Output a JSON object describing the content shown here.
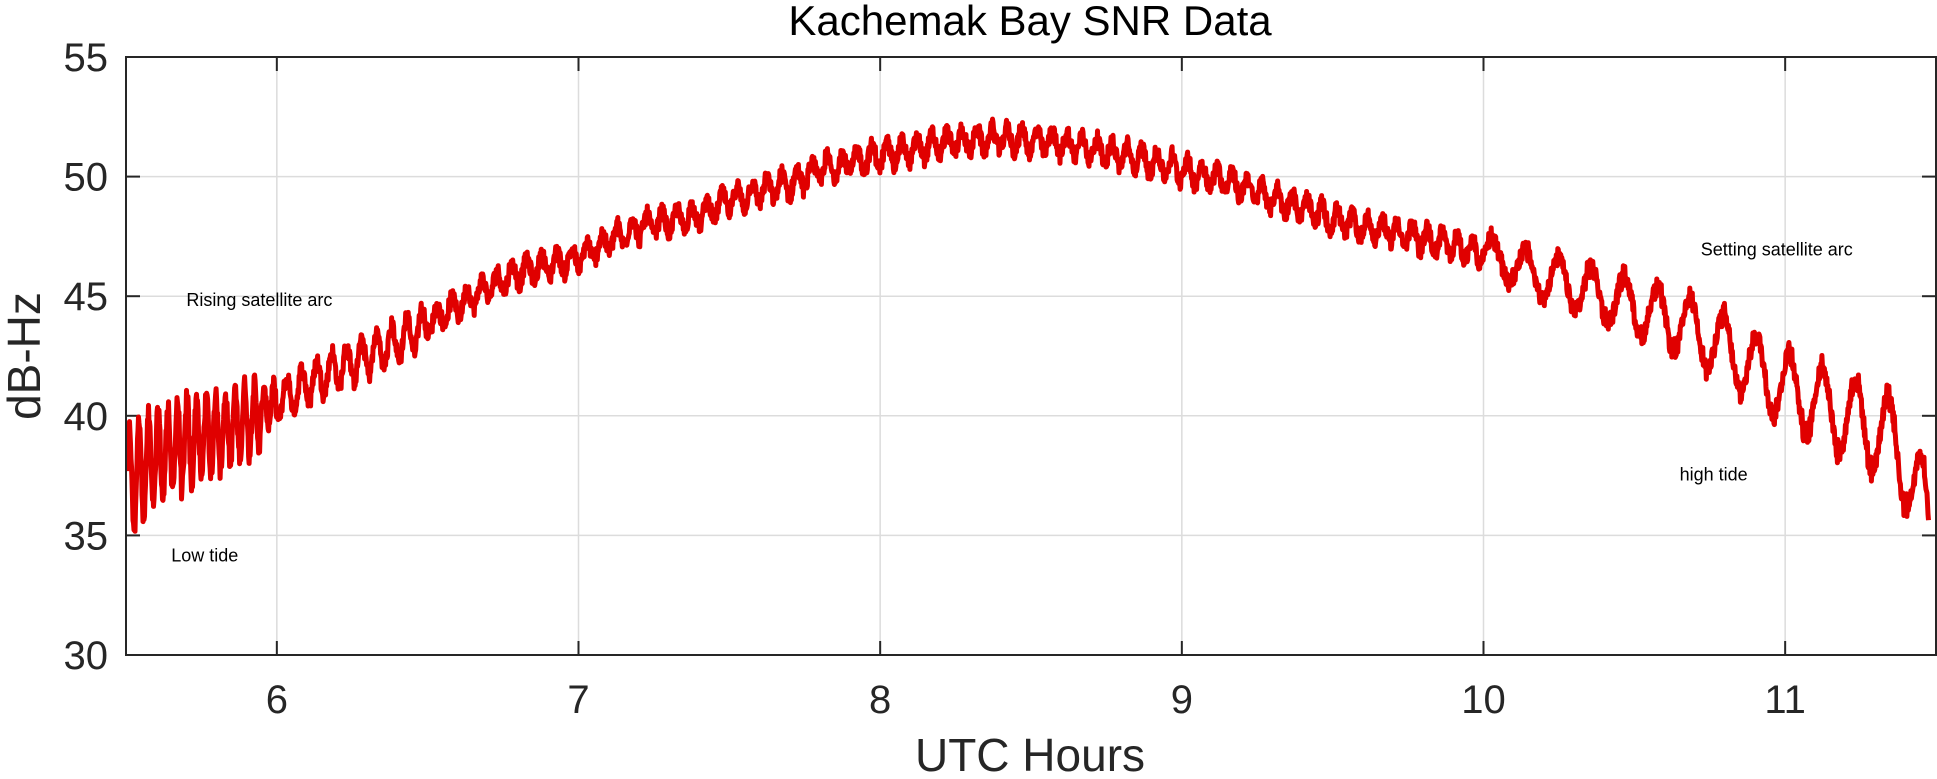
{
  "chart_data": {
    "type": "line",
    "title": "Kachemak Bay SNR Data",
    "xlabel": "UTC Hours",
    "ylabel": "dB-Hz",
    "xlim": [
      5.5,
      11.5
    ],
    "ylim": [
      30,
      55
    ],
    "xticks": [
      6,
      7,
      8,
      9,
      10,
      11
    ],
    "yticks": [
      30,
      35,
      40,
      45,
      50,
      55
    ],
    "grid": true,
    "colors": {
      "series": "#e00000",
      "grid": "#dcdcdc",
      "axis": "#262626"
    },
    "series": [
      {
        "x": [
          5.5,
          5.55,
          5.6,
          5.65,
          5.7,
          5.75,
          5.8,
          5.85,
          5.9,
          6.0,
          6.1,
          6.2,
          6.3,
          6.4,
          6.5,
          6.6,
          6.7,
          6.8,
          6.9,
          7.0,
          7.1,
          7.2,
          7.3,
          7.4,
          7.5,
          7.6,
          7.7,
          7.8,
          7.9,
          8.0,
          8.1,
          8.2,
          8.3,
          8.4,
          8.5,
          8.6,
          8.7,
          8.8,
          8.9,
          9.0,
          9.1,
          9.2,
          9.3,
          9.4,
          9.5,
          9.6,
          9.7,
          9.8,
          9.9,
          10.0,
          10.1,
          10.2,
          10.3,
          10.4,
          10.5,
          10.6,
          10.7,
          10.8,
          10.9,
          11.0,
          11.1,
          11.2,
          11.3,
          11.35,
          11.4,
          11.45,
          11.5
        ],
        "y": [
          37,
          37.8,
          38.2,
          38.6,
          38.9,
          39.1,
          39.3,
          39.5,
          39.8,
          40.6,
          41.3,
          42.0,
          42.5,
          43.1,
          43.9,
          44.6,
          45.4,
          46.0,
          46.3,
          46.6,
          47.3,
          47.9,
          48.1,
          48.4,
          49.0,
          49.4,
          49.7,
          50.3,
          50.6,
          50.9,
          51.1,
          51.4,
          51.5,
          51.6,
          51.5,
          51.4,
          51.2,
          50.9,
          50.6,
          50.3,
          50.0,
          49.6,
          49.1,
          48.7,
          48.2,
          47.9,
          47.7,
          47.4,
          47.1,
          46.8,
          46.3,
          45.8,
          45.4,
          45.0,
          44.6,
          44.1,
          43.6,
          42.8,
          42.0,
          41.2,
          40.6,
          40.0,
          39.4,
          39.0,
          38.0,
          36.5,
          34.5
        ]
      }
    ],
    "annotations": [
      {
        "text": "Rising satellite arc",
        "x": 5.7,
        "y": 44.6
      },
      {
        "text": "Low tide",
        "x": 5.65,
        "y": 33.9
      },
      {
        "text": "Setting satellite arc",
        "x": 10.72,
        "y": 46.7
      },
      {
        "text": "high tide",
        "x": 10.65,
        "y": 37.3
      }
    ]
  }
}
